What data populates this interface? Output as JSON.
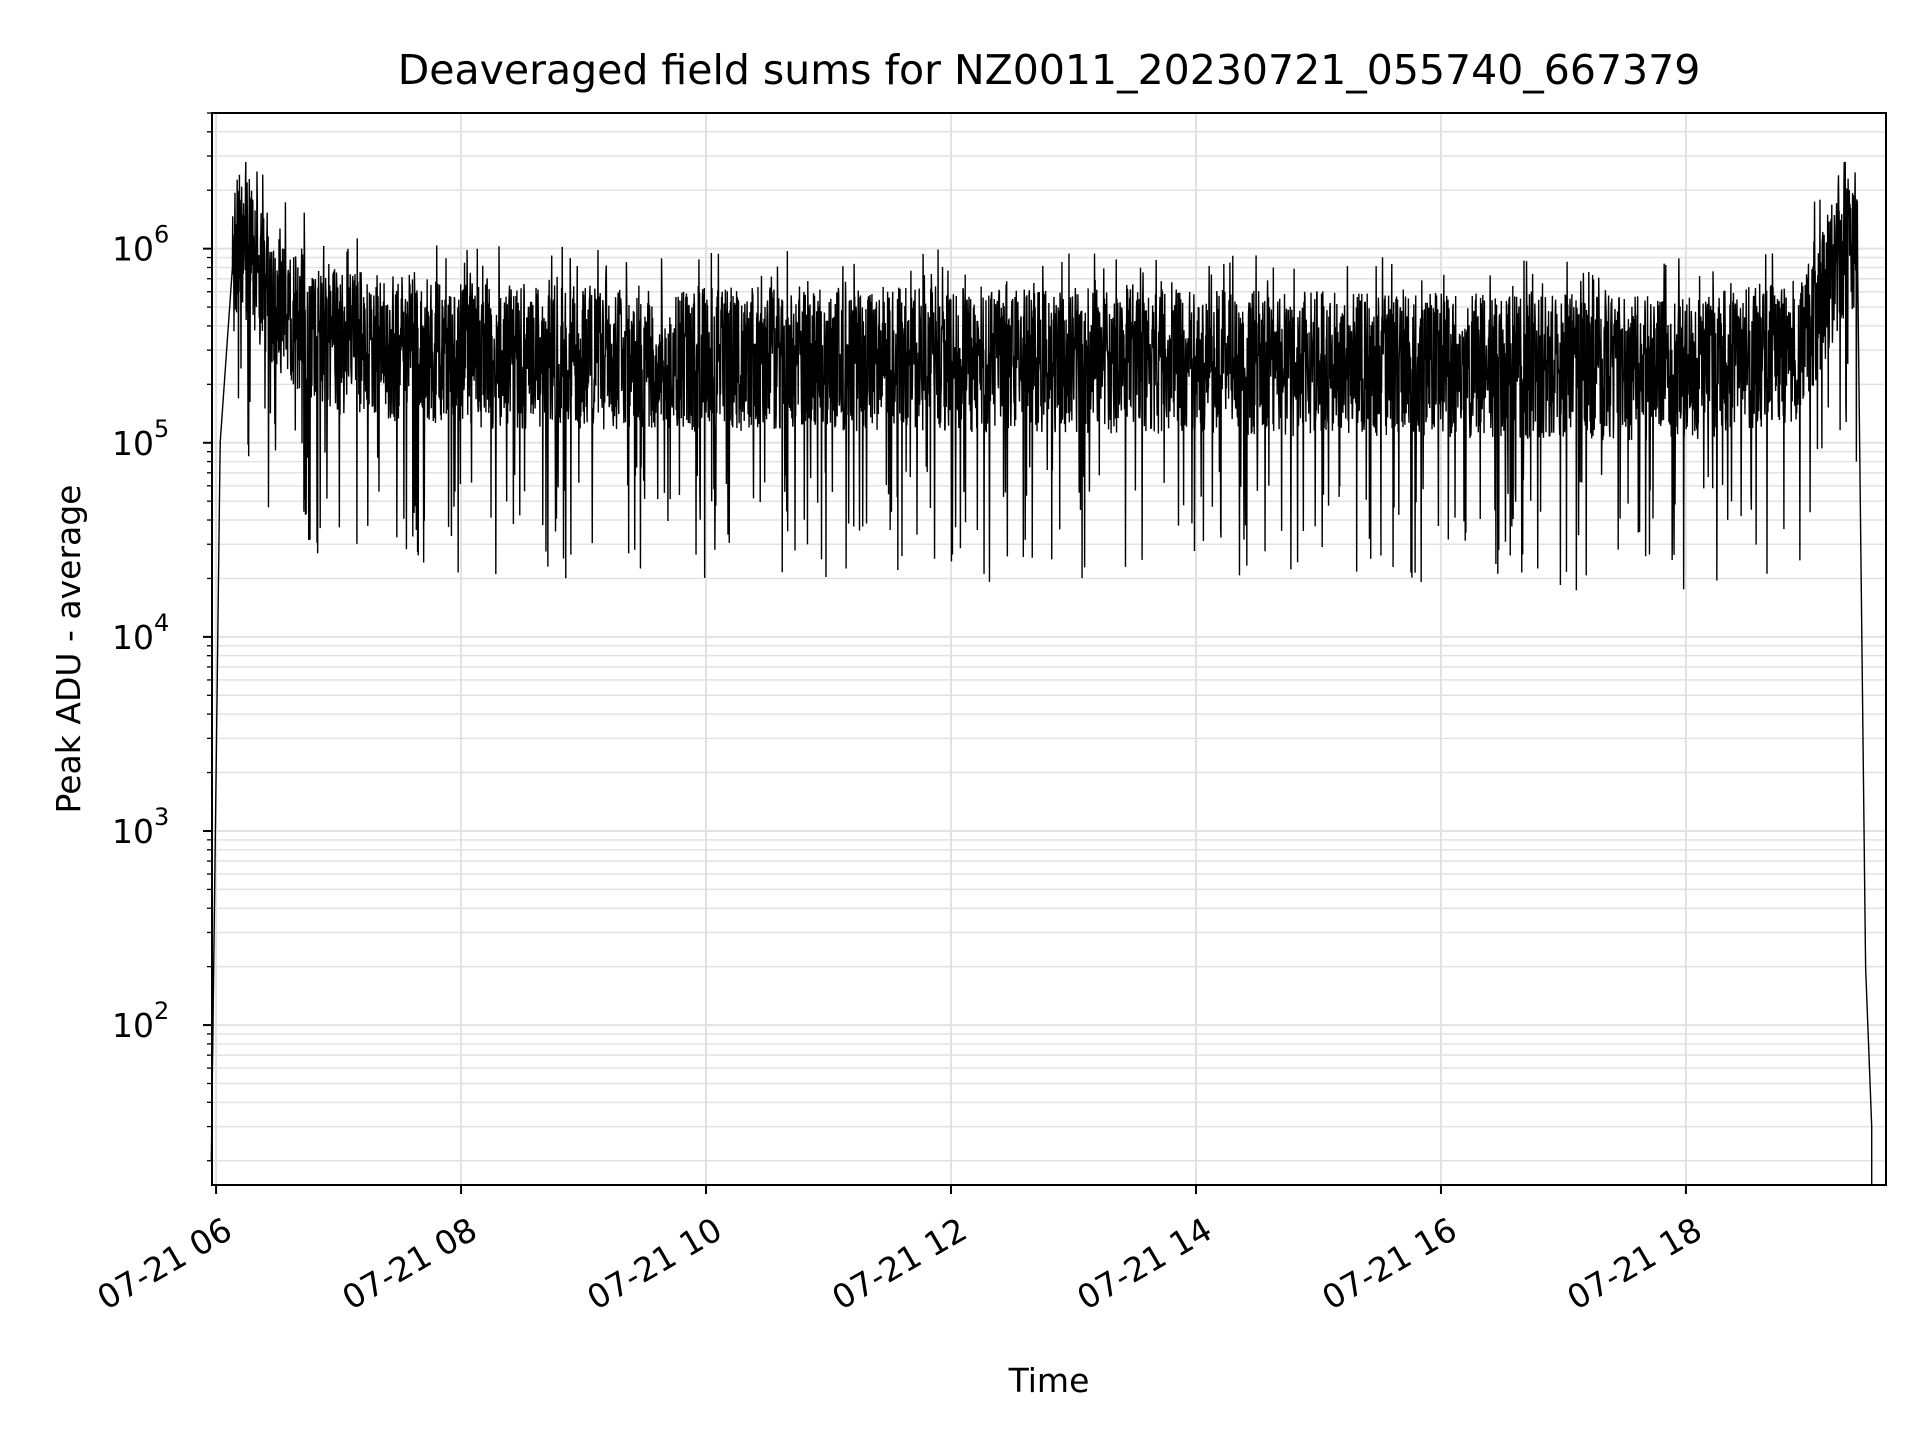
{
  "chart_data": {
    "type": "line",
    "title": "Deaveraged field sums for NZ0011_20230721_055740_667379",
    "xlabel": "Time",
    "ylabel": "Peak ADU - average",
    "x_range": [
      "2023-07-21T05:57:40",
      "2023-07-21T19:31:00"
    ],
    "xlim": [
      "2023-07-21T05:58:00",
      "2023-07-21T19:38:00"
    ],
    "ylim": [
      15,
      5000000
    ],
    "y_scale": "log",
    "grid": true,
    "line_color": "#000000",
    "x_ticks": [
      {
        "value": "2023-07-21T06:00:00",
        "label": "07-21 06"
      },
      {
        "value": "2023-07-21T08:00:00",
        "label": "07-21 08"
      },
      {
        "value": "2023-07-21T10:00:00",
        "label": "07-21 10"
      },
      {
        "value": "2023-07-21T12:00:00",
        "label": "07-21 12"
      },
      {
        "value": "2023-07-21T14:00:00",
        "label": "07-21 14"
      },
      {
        "value": "2023-07-21T16:00:00",
        "label": "07-21 16"
      },
      {
        "value": "2023-07-21T18:00:00",
        "label": "07-21 18"
      }
    ],
    "y_ticks": [
      {
        "value": 100,
        "base": "10",
        "exp": "2"
      },
      {
        "value": 1000,
        "base": "10",
        "exp": "3"
      },
      {
        "value": 10000,
        "base": "10",
        "exp": "4"
      },
      {
        "value": 100000,
        "base": "10",
        "exp": "5"
      },
      {
        "value": 1000000,
        "base": "10",
        "exp": "6"
      }
    ],
    "series": [
      {
        "envelope": [
          {
            "t": "2023-07-21T05:57:40",
            "typical": 20
          },
          {
            "t": "2023-07-21T06:02:00",
            "typical": 100000
          },
          {
            "t": "2023-07-21T06:08:00",
            "typical": 800000
          },
          {
            "t": "2023-07-21T06:12:00",
            "typical": 1100000
          },
          {
            "t": "2023-07-21T06:20:00",
            "typical": 800000
          },
          {
            "t": "2023-07-21T06:30:00",
            "typical": 500000
          },
          {
            "t": "2023-07-21T07:00:00",
            "typical": 330000
          },
          {
            "t": "2023-07-21T08:00:00",
            "typical": 280000
          },
          {
            "t": "2023-07-21T10:00:00",
            "typical": 270000
          },
          {
            "t": "2023-07-21T12:00:00",
            "typical": 270000
          },
          {
            "t": "2023-07-21T14:00:00",
            "typical": 260000
          },
          {
            "t": "2023-07-21T16:00:00",
            "typical": 250000
          },
          {
            "t": "2023-07-21T18:00:00",
            "typical": 240000
          },
          {
            "t": "2023-07-21T18:55:00",
            "typical": 300000
          },
          {
            "t": "2023-07-21T19:10:00",
            "typical": 700000
          },
          {
            "t": "2023-07-21T19:20:00",
            "typical": 1200000
          },
          {
            "t": "2023-07-21T19:24:00",
            "typical": 1000000
          },
          {
            "t": "2023-07-21T19:28:00",
            "typical": 200
          },
          {
            "t": "2023-07-21T19:31:00",
            "typical": 30
          }
        ],
        "band_low": 20000,
        "band_high": 2800000
      }
    ]
  }
}
